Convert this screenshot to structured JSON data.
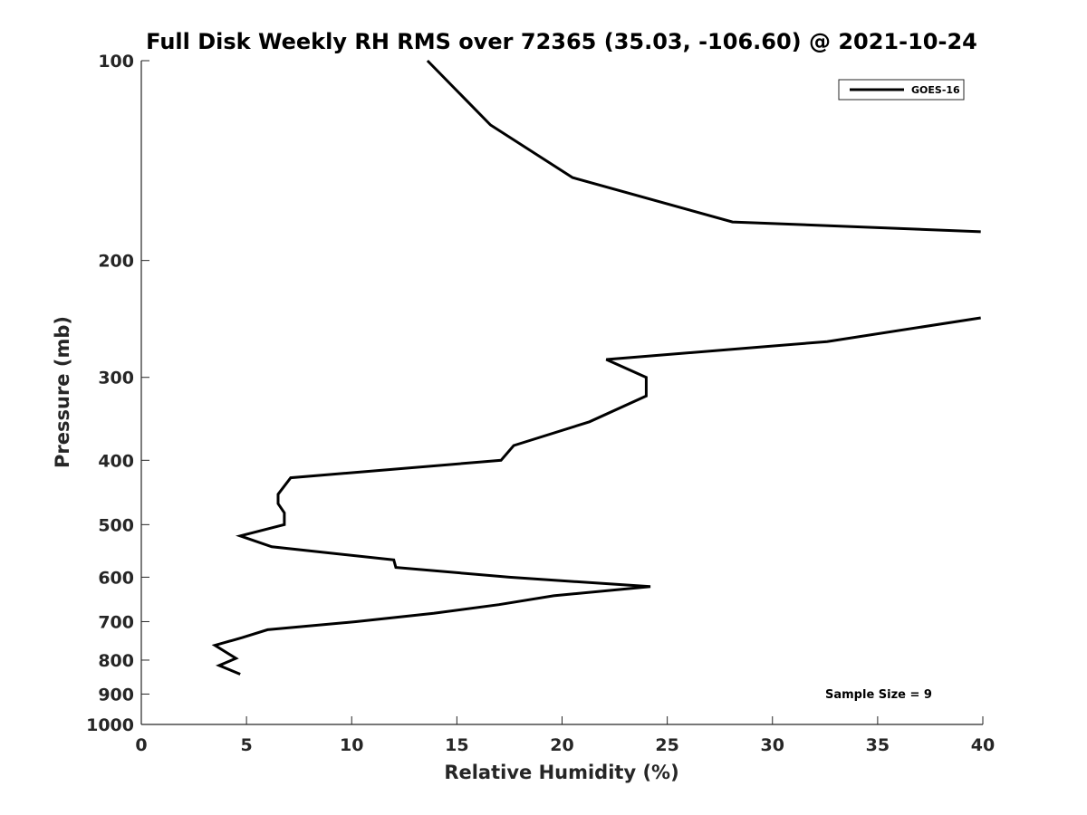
{
  "chart_data": {
    "type": "line",
    "title": "Full Disk Weekly RH RMS over 72365 (35.03, -106.60) @ 2021-10-24",
    "xlabel": "Relative Humidity (%)",
    "ylabel": "Pressure (mb)",
    "xlim": [
      0,
      40
    ],
    "ylim": [
      1000,
      100
    ],
    "yscale": "log",
    "y_reversed": true,
    "grid": false,
    "legend_position": "top-right",
    "x_ticks": [
      "0",
      "5",
      "10",
      "15",
      "20",
      "25",
      "30",
      "35",
      "40"
    ],
    "y_ticks": [
      "100",
      "200",
      "300",
      "400",
      "500",
      "600",
      "700",
      "800",
      "900",
      "1000"
    ],
    "annotation": "Sample Size = 9",
    "series": [
      {
        "name": "GOES-16",
        "color": "#000000",
        "segments": [
          [
            [
              13.6,
              100
            ],
            [
              16.6,
              125
            ],
            [
              20.5,
              150
            ],
            [
              28.1,
              175
            ],
            [
              39.9,
              181
            ]
          ],
          [
            [
              39.9,
              244
            ],
            [
              32.6,
              265
            ],
            [
              22.1,
              282
            ],
            [
              24.0,
              300
            ],
            [
              24.0,
              320
            ],
            [
              21.3,
              350
            ],
            [
              17.7,
              380
            ],
            [
              17.1,
              400
            ],
            [
              7.1,
              425
            ],
            [
              6.5,
              450
            ],
            [
              6.5,
              465
            ],
            [
              6.8,
              480
            ],
            [
              6.8,
              500
            ],
            [
              4.7,
              520
            ],
            [
              6.2,
              540
            ],
            [
              12.0,
              565
            ],
            [
              12.1,
              580
            ],
            [
              17.5,
              600
            ],
            [
              24.2,
              620
            ],
            [
              19.6,
              640
            ],
            [
              17.0,
              660
            ],
            [
              13.9,
              680
            ],
            [
              10.2,
              700
            ],
            [
              6.0,
              720
            ],
            [
              4.8,
              740
            ],
            [
              3.5,
              760
            ],
            [
              4.5,
              795
            ],
            [
              3.7,
              815
            ],
            [
              4.7,
              840
            ]
          ]
        ]
      }
    ]
  }
}
